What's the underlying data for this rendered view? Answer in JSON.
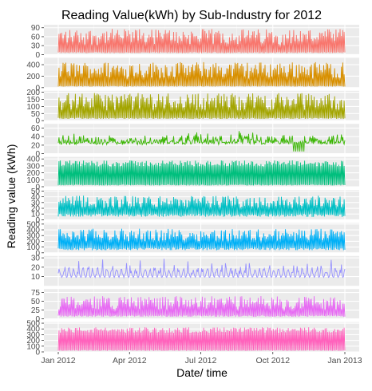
{
  "chart_data": {
    "type": "line",
    "title": "Reading Value(kWh) by Sub-Industry for 2012",
    "xlabel": "Date/ time",
    "ylabel": "Reading value (kWh)",
    "x_ticks": [
      "Jan 2012",
      "Apr 2012",
      "Jul 2012",
      "Oct 2012",
      "Jan 2013"
    ],
    "x_range": [
      "2012-01-01",
      "2013-01-01"
    ],
    "grid": true,
    "legend": "none",
    "panels": [
      {
        "color": "#F8766D",
        "ylim": [
          0,
          100
        ],
        "yticks": [
          0,
          30,
          60,
          90
        ],
        "base": 8,
        "amplitude": 78,
        "pattern": "spikes"
      },
      {
        "color": "#D89000",
        "ylim": [
          0,
          520
        ],
        "yticks": [
          0,
          200,
          400
        ],
        "base": 30,
        "amplitude": 420,
        "pattern": "spikes"
      },
      {
        "color": "#A3A500",
        "ylim": [
          0,
          210
        ],
        "yticks": [
          0,
          50,
          100,
          150,
          200
        ],
        "base": 20,
        "amplitude": 175,
        "pattern": "spikes"
      },
      {
        "color": "#39B600",
        "ylim": [
          0,
          70
        ],
        "yticks": [
          0,
          20,
          40,
          60
        ],
        "base": 26,
        "amplitude": 22,
        "pattern": "midband"
      },
      {
        "color": "#00BF7D",
        "ylim": [
          0,
          430
        ],
        "yticks": [
          0,
          100,
          200,
          300,
          400
        ],
        "base": 30,
        "amplitude": 350,
        "pattern": "solid"
      },
      {
        "color": "#00BFC4",
        "ylim": [
          0,
          52
        ],
        "yticks": [
          0,
          10,
          20,
          30,
          40,
          50
        ],
        "base": 10,
        "amplitude": 32,
        "pattern": "dense"
      },
      {
        "color": "#00B0F6",
        "ylim": [
          0,
          520
        ],
        "yticks": [
          0,
          100,
          200,
          300,
          400,
          500
        ],
        "base": 90,
        "amplitude": 330,
        "pattern": "dense"
      },
      {
        "color": "#9590FF",
        "ylim": [
          0,
          32
        ],
        "yticks": [
          10,
          20,
          30
        ],
        "base": 9,
        "amplitude": 16,
        "pattern": "sparse"
      },
      {
        "color": "#E76BF3",
        "ylim": [
          0,
          85
        ],
        "yticks": [
          0,
          25,
          50,
          75
        ],
        "base": 10,
        "amplitude": 55,
        "pattern": "spikes"
      },
      {
        "color": "#FF62BC",
        "ylim": [
          0,
          520
        ],
        "yticks": [
          0,
          100,
          200,
          300,
          400,
          500
        ],
        "base": 30,
        "amplitude": 400,
        "pattern": "solid"
      }
    ]
  }
}
